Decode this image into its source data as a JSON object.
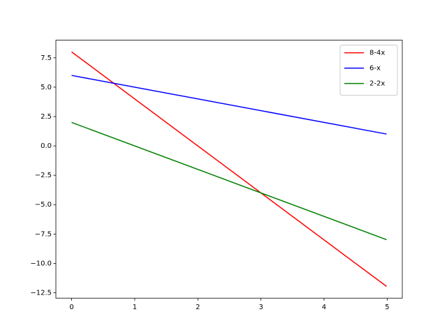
{
  "chart_data": {
    "type": "line",
    "x": [
      0,
      4.99
    ],
    "series": [
      {
        "name": "8-4x",
        "color": "#ff0000",
        "values": [
          8,
          -11.96
        ]
      },
      {
        "name": "6-x",
        "color": "#0000ff",
        "values": [
          6,
          1.01
        ]
      },
      {
        "name": "2-2x",
        "color": "#008000",
        "values": [
          2,
          -7.98
        ]
      }
    ],
    "xlim": [
      -0.2495,
      5.2395
    ],
    "ylim": [
      -12.958,
      8.998
    ],
    "xticks": [
      0,
      1,
      2,
      3,
      4,
      5
    ],
    "yticks": [
      {
        "value": -12.5,
        "label": "−12.5"
      },
      {
        "value": -10,
        "label": "−10.0"
      },
      {
        "value": -7.5,
        "label": "−7.5"
      },
      {
        "value": -5,
        "label": "−5.0"
      },
      {
        "value": -2.5,
        "label": "−2.5"
      },
      {
        "value": 0,
        "label": "0.0"
      },
      2.5,
      {
        "value": 5,
        "label": "5.0"
      },
      7.5
    ],
    "legend": "upper right"
  }
}
